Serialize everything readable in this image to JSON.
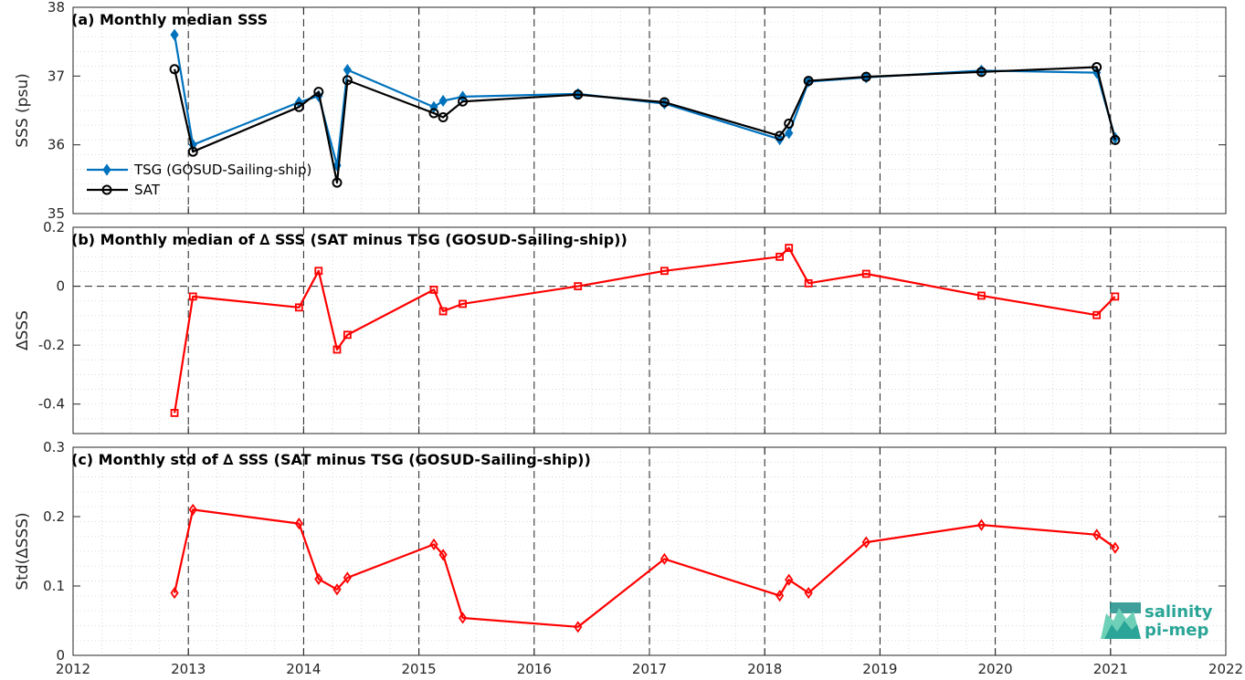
{
  "chart_data": [
    {
      "type": "line",
      "title": "(a) Monthly median SSS",
      "ylabel": "SSS (psu)",
      "xlim": [
        2012,
        2022
      ],
      "ylim": [
        35,
        38
      ],
      "yticks": [
        "35",
        "36",
        "37",
        "38"
      ],
      "grid": "minor-dotted",
      "legend_placement": "bottom-left",
      "series": [
        {
          "name": "TSG (GOSUD-Sailing-ship)",
          "color": "#0072BD",
          "marker": "diamond",
          "x": [
            2012.88,
            2013.04,
            2013.96,
            2014.13,
            2014.29,
            2014.38,
            2015.13,
            2015.21,
            2015.38,
            2016.38,
            2017.13,
            2018.13,
            2018.21,
            2018.38,
            2018.88,
            2019.88,
            2020.88,
            2021.04
          ],
          "y": [
            37.6,
            36.0,
            36.62,
            36.71,
            35.7,
            37.09,
            36.55,
            36.64,
            36.7,
            36.74,
            36.6,
            36.08,
            36.17,
            36.92,
            36.98,
            37.08,
            37.05,
            36.1
          ]
        },
        {
          "name": "SAT",
          "color": "#000000",
          "marker": "circle",
          "x": [
            2012.88,
            2013.04,
            2013.96,
            2014.13,
            2014.29,
            2014.38,
            2015.13,
            2015.21,
            2015.38,
            2016.38,
            2017.13,
            2018.13,
            2018.21,
            2018.38,
            2018.88,
            2019.88,
            2020.88,
            2021.04
          ],
          "y": [
            37.1,
            35.9,
            36.55,
            36.77,
            35.45,
            36.94,
            36.46,
            36.4,
            36.63,
            36.73,
            36.62,
            36.13,
            36.31,
            36.93,
            36.99,
            37.06,
            37.13,
            36.07
          ]
        }
      ]
    },
    {
      "type": "line",
      "title": "(b) Monthly median of ∆ SSS (SAT minus TSG (GOSUD-Sailing-ship))",
      "ylabel": "∆SSS",
      "xlim": [
        2012,
        2022
      ],
      "ylim": [
        -0.5,
        0.2
      ],
      "yticks": [
        "-0.4",
        "-0.2",
        "0",
        "0.2"
      ],
      "grid": "minor-dotted",
      "zero_line": "dashed",
      "series": [
        {
          "color": "#FF0000",
          "marker": "square",
          "x": [
            2012.88,
            2013.04,
            2013.96,
            2014.13,
            2014.29,
            2014.38,
            2015.13,
            2015.21,
            2015.38,
            2016.38,
            2017.13,
            2018.13,
            2018.21,
            2018.38,
            2018.88,
            2019.88,
            2020.88,
            2021.04
          ],
          "y": [
            -0.43,
            -0.035,
            -0.072,
            0.052,
            -0.215,
            -0.165,
            -0.012,
            -0.085,
            -0.06,
            0.0,
            0.052,
            0.1,
            0.13,
            0.01,
            0.042,
            -0.032,
            -0.098,
            -0.035
          ]
        }
      ]
    },
    {
      "type": "line",
      "title": "(c) Monthly std of ∆ SSS (SAT minus TSG (GOSUD-Sailing-ship))",
      "ylabel": "Std(∆SSS)",
      "xlabel": "",
      "xlim": [
        2012,
        2022
      ],
      "ylim": [
        0,
        0.3
      ],
      "yticks": [
        "0",
        "0.1",
        "0.2",
        "0.3"
      ],
      "xticks": [
        "2012",
        "2013",
        "2014",
        "2015",
        "2016",
        "2017",
        "2018",
        "2019",
        "2020",
        "2021",
        "2022"
      ],
      "grid": "minor-dotted",
      "series": [
        {
          "color": "#FF0000",
          "marker": "diamond",
          "x": [
            2012.88,
            2013.04,
            2013.96,
            2014.13,
            2014.29,
            2014.38,
            2015.13,
            2015.21,
            2015.38,
            2016.38,
            2017.13,
            2018.13,
            2018.21,
            2018.38,
            2018.88,
            2019.88,
            2020.88,
            2021.04
          ],
          "y": [
            0.09,
            0.21,
            0.19,
            0.11,
            0.095,
            0.112,
            0.16,
            0.145,
            0.054,
            0.041,
            0.139,
            0.086,
            0.109,
            0.09,
            0.163,
            0.188,
            0.174,
            0.155
          ]
        }
      ]
    }
  ],
  "logo": {
    "line1": "salinity",
    "line2": "pi-mep",
    "colors": [
      "#2aa597",
      "#1d8f8a",
      "#6fd0b8"
    ]
  }
}
